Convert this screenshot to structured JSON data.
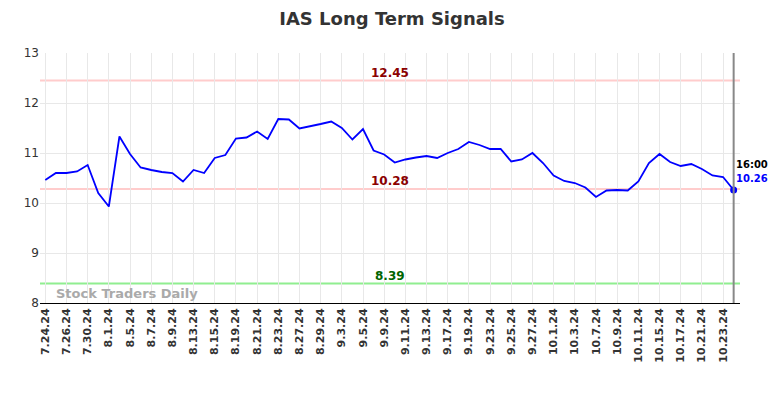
{
  "chart_data": {
    "type": "line",
    "title": "IAS Long Term Signals",
    "categories": [
      "7.24.24",
      null,
      "7.26.24",
      null,
      "7.30.24",
      null,
      "8.1.24",
      null,
      "8.5.24",
      null,
      "8.7.24",
      null,
      "8.9.24",
      null,
      "8.13.24",
      null,
      "8.15.24",
      null,
      "8.19.24",
      null,
      "8.21.24",
      null,
      "8.23.24",
      null,
      "8.27.24",
      null,
      "8.29.24",
      null,
      "9.3.24",
      null,
      "9.5.24",
      null,
      "9.9.24",
      null,
      "9.11.24",
      null,
      "9.13.24",
      null,
      "9.17.24",
      null,
      "9.19.24",
      null,
      "9.23.24",
      null,
      "9.25.24",
      null,
      "9.27.24",
      null,
      "10.1.24",
      null,
      "10.3.24",
      null,
      "10.7.24",
      null,
      "10.9.24",
      null,
      "10.11.24",
      null,
      "10.15.24",
      null,
      "10.17.24",
      null,
      "10.21.24",
      null,
      "10.23.24",
      null
    ],
    "values": [
      10.46,
      10.6,
      10.6,
      10.63,
      10.76,
      10.2,
      9.93,
      11.33,
      10.98,
      10.71,
      10.66,
      10.62,
      10.6,
      10.43,
      10.66,
      10.6,
      10.9,
      10.96,
      11.29,
      11.31,
      11.43,
      11.28,
      11.68,
      11.67,
      11.49,
      11.53,
      11.58,
      11.63,
      11.5,
      11.27,
      11.48,
      11.05,
      10.97,
      10.81,
      10.87,
      10.91,
      10.94,
      10.9,
      11.0,
      11.08,
      11.22,
      11.16,
      11.08,
      11.08,
      10.83,
      10.87,
      11.0,
      10.8,
      10.55,
      10.44,
      10.4,
      10.31,
      10.12,
      10.25,
      10.26,
      10.25,
      10.43,
      10.8,
      10.98,
      10.82,
      10.74,
      10.78,
      10.68,
      10.55,
      10.52,
      10.26
    ],
    "color": "#0000ff",
    "ylim": [
      8,
      13
    ],
    "yticks": [
      8,
      9,
      10,
      11,
      12,
      13
    ],
    "grid": true,
    "levels": [
      {
        "value": 12.45,
        "label": "12.45",
        "color": "#ffcccc",
        "label_color": "#8b0000"
      },
      {
        "value": 10.28,
        "label": "10.28",
        "color": "#ffcccc",
        "label_color": "#8b0000"
      },
      {
        "value": 8.39,
        "label": "8.39",
        "color": "#90ee90",
        "label_color": "#006400"
      }
    ],
    "end_label": {
      "time": "16:00",
      "value_label": "10.26"
    },
    "watermark": "Stock Traders Daily"
  }
}
